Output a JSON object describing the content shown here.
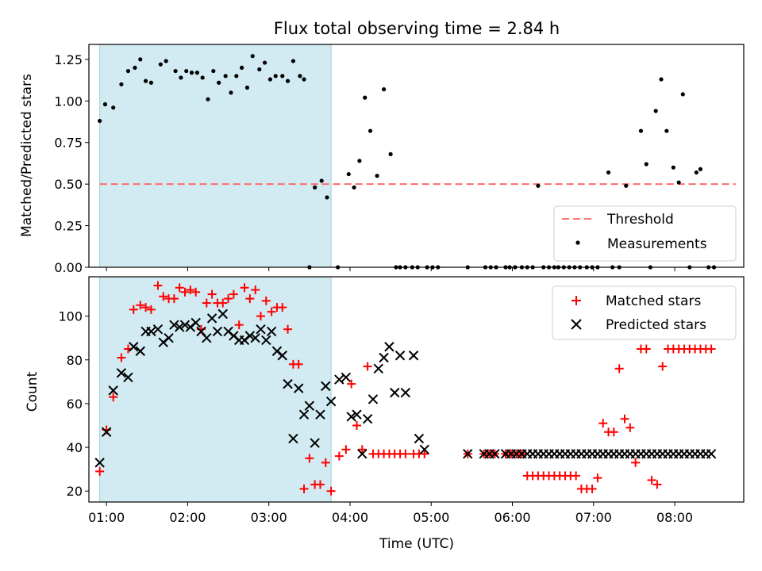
{
  "chart_data": [
    {
      "type": "scatter",
      "title": "Flux total observing time = 2.84 h",
      "xlabel": "",
      "ylabel": "Matched/Predicted stars",
      "xlim": [
        "00:47",
        "08:51"
      ],
      "ylim": [
        0,
        1.34
      ],
      "xticks": [
        "01:00",
        "02:00",
        "03:00",
        "04:00",
        "05:00",
        "06:00",
        "07:00",
        "08:00"
      ],
      "yticks": [
        "0.00",
        "0.25",
        "0.50",
        "0.75",
        "1.00",
        "1.25"
      ],
      "shaded_span": [
        "00:55",
        "03:46"
      ],
      "threshold": 0.5,
      "legend": [
        "Threshold",
        "Measurements"
      ],
      "legend_position": "lower right",
      "colors": {
        "threshold": "#ff6b6b",
        "measurements": "#000000",
        "span": "#add8e6"
      },
      "series": [
        {
          "name": "Threshold",
          "style": "dashed-line",
          "x": [
            "00:55",
            "08:45"
          ],
          "values": [
            0.5,
            0.5
          ]
        },
        {
          "name": "Measurements",
          "style": "dot",
          "x": [
            "00:55",
            "00:59",
            "01:05",
            "01:11",
            "01:16",
            "01:21",
            "01:25",
            "01:29",
            "01:33",
            "01:40",
            "01:44",
            "01:51",
            "01:55",
            "01:59",
            "02:03",
            "02:07",
            "02:11",
            "02:15",
            "02:19",
            "02:23",
            "02:28",
            "02:32",
            "02:36",
            "02:40",
            "02:44",
            "02:48",
            "02:53",
            "02:57",
            "03:01",
            "03:05",
            "03:10",
            "03:14",
            "03:18",
            "03:23",
            "03:26",
            "03:30",
            "03:34",
            "03:39",
            "03:43",
            "03:51",
            "03:59",
            "04:03",
            "04:07",
            "04:11",
            "04:15",
            "04:20",
            "04:25",
            "04:30",
            "04:34",
            "04:37",
            "04:41",
            "04:46",
            "04:50",
            "04:57",
            "05:01",
            "05:05",
            "05:27",
            "05:40",
            "05:44",
            "05:48",
            "05:55",
            "05:58",
            "06:02",
            "06:07",
            "06:11",
            "06:15",
            "06:19",
            "06:23",
            "06:27",
            "06:31",
            "06:34",
            "06:38",
            "06:42",
            "06:46",
            "06:50",
            "06:55",
            "06:59",
            "07:03",
            "07:11",
            "07:14",
            "07:19",
            "07:24",
            "07:35",
            "07:39",
            "07:42",
            "07:46",
            "07:50",
            "07:54",
            "07:59",
            "08:03",
            "08:06",
            "08:11",
            "08:16",
            "08:19",
            "08:25",
            "08:29"
          ],
          "values": [
            0.88,
            0.98,
            0.96,
            1.1,
            1.18,
            1.2,
            1.25,
            1.12,
            1.11,
            1.22,
            1.24,
            1.18,
            1.14,
            1.18,
            1.17,
            1.17,
            1.14,
            1.01,
            1.18,
            1.11,
            1.15,
            1.05,
            1.15,
            1.2,
            1.08,
            1.27,
            1.19,
            1.23,
            1.13,
            1.15,
            1.15,
            1.12,
            1.24,
            1.15,
            1.13,
            0.0,
            0.48,
            0.52,
            0.42,
            0.0,
            0.56,
            0.48,
            0.64,
            1.02,
            0.82,
            0.55,
            1.07,
            0.68,
            0.0,
            0.0,
            0.0,
            0.0,
            0.0,
            0.0,
            0.0,
            0.0,
            0.0,
            0.0,
            0.0,
            0.0,
            0.0,
            0.0,
            0.0,
            0.0,
            0.0,
            0.0,
            0.49,
            0.0,
            0.0,
            0.0,
            0.0,
            0.0,
            0.0,
            0.0,
            0.0,
            0.0,
            0.0,
            0.0,
            0.57,
            0.0,
            0.0,
            0.49,
            0.82,
            0.62,
            0.0,
            0.94,
            1.13,
            0.82,
            0.6,
            0.51,
            1.04,
            0.0,
            0.57,
            0.59,
            0.0,
            0.0
          ]
        }
      ]
    },
    {
      "type": "scatter",
      "title": "",
      "xlabel": "Time (UTC)",
      "ylabel": "Count",
      "xlim": [
        "00:47",
        "08:51"
      ],
      "ylim": [
        15,
        118
      ],
      "xticks": [
        "01:00",
        "02:00",
        "03:00",
        "04:00",
        "05:00",
        "06:00",
        "07:00",
        "08:00"
      ],
      "yticks": [
        "20",
        "40",
        "60",
        "80",
        "100"
      ],
      "shaded_span": [
        "00:55",
        "03:46"
      ],
      "legend": [
        "Matched stars",
        "Predicted stars"
      ],
      "legend_position": "upper right",
      "colors": {
        "matched": "#ff0000",
        "predicted": "#000000",
        "span": "#add8e6"
      },
      "series": [
        {
          "name": "Matched stars",
          "marker": "+",
          "x": [
            "00:55",
            "01:00",
            "01:05",
            "01:11",
            "01:16",
            "01:20",
            "01:25",
            "01:29",
            "01:33",
            "01:38",
            "01:42",
            "01:46",
            "01:50",
            "01:54",
            "01:58",
            "02:02",
            "02:06",
            "02:10",
            "02:14",
            "02:18",
            "02:22",
            "02:26",
            "02:30",
            "02:34",
            "02:38",
            "02:42",
            "02:46",
            "02:50",
            "02:54",
            "02:58",
            "03:02",
            "03:06",
            "03:10",
            "03:14",
            "03:18",
            "03:22",
            "03:26",
            "03:30",
            "03:34",
            "03:38",
            "03:42",
            "03:46",
            "03:52",
            "03:57",
            "04:01",
            "04:05",
            "04:09",
            "04:13",
            "04:17",
            "04:21",
            "04:25",
            "04:29",
            "04:33",
            "04:37",
            "04:41",
            "04:47",
            "04:51",
            "04:55",
            "05:27",
            "05:39",
            "05:43",
            "05:47",
            "05:55",
            "05:59",
            "06:03",
            "06:07",
            "06:11",
            "06:15",
            "06:19",
            "06:23",
            "06:27",
            "06:31",
            "06:35",
            "06:39",
            "06:43",
            "06:47",
            "06:51",
            "06:55",
            "06:59",
            "07:03",
            "07:07",
            "07:11",
            "07:15",
            "07:19",
            "07:23",
            "07:27",
            "07:31",
            "07:35",
            "07:39",
            "07:43",
            "07:47",
            "07:51",
            "07:55",
            "07:59",
            "08:03",
            "08:07",
            "08:11",
            "08:15",
            "08:19",
            "08:23",
            "08:27"
          ],
          "values": [
            29,
            48,
            63,
            81,
            85,
            103,
            105,
            104,
            103,
            114,
            109,
            108,
            108,
            113,
            111,
            112,
            111,
            94,
            106,
            110,
            106,
            106,
            108,
            110,
            96,
            113,
            108,
            112,
            100,
            107,
            102,
            104,
            104,
            94,
            78,
            78,
            21,
            35,
            23,
            23,
            33,
            20,
            36,
            39,
            69,
            50,
            39,
            77,
            37,
            37,
            37,
            37,
            37,
            37,
            37,
            37,
            37,
            37,
            37,
            37,
            37,
            37,
            37,
            37,
            37,
            37,
            27,
            27,
            27,
            27,
            27,
            27,
            27,
            27,
            27,
            27,
            21,
            21,
            21,
            26,
            51,
            47,
            47,
            76,
            53,
            49,
            33,
            85,
            85,
            25,
            23,
            77,
            85,
            85,
            85,
            85,
            85,
            85,
            85,
            85,
            85
          ]
        },
        {
          "name": "Predicted stars",
          "marker": "x",
          "x": [
            "00:55",
            "01:00",
            "01:05",
            "01:11",
            "01:16",
            "01:20",
            "01:25",
            "01:29",
            "01:33",
            "01:38",
            "01:42",
            "01:46",
            "01:50",
            "01:54",
            "01:58",
            "02:02",
            "02:06",
            "02:10",
            "02:14",
            "02:18",
            "02:22",
            "02:26",
            "02:30",
            "02:34",
            "02:38",
            "02:42",
            "02:46",
            "02:50",
            "02:54",
            "02:58",
            "03:02",
            "03:06",
            "03:10",
            "03:14",
            "03:18",
            "03:22",
            "03:26",
            "03:30",
            "03:34",
            "03:38",
            "03:42",
            "03:46",
            "03:52",
            "03:57",
            "04:01",
            "04:05",
            "04:09",
            "04:13",
            "04:17",
            "04:21",
            "04:25",
            "04:29",
            "04:33",
            "04:37",
            "04:41",
            "04:47",
            "04:51",
            "04:55",
            "05:27",
            "05:39",
            "05:43",
            "05:47",
            "05:55",
            "05:59",
            "06:03",
            "06:07",
            "06:11",
            "06:15",
            "06:19",
            "06:23",
            "06:27",
            "06:31",
            "06:35",
            "06:39",
            "06:43",
            "06:47",
            "06:51",
            "06:55",
            "06:59",
            "07:03",
            "07:07",
            "07:11",
            "07:15",
            "07:19",
            "07:23",
            "07:27",
            "07:31",
            "07:35",
            "07:39",
            "07:43",
            "07:47",
            "07:51",
            "07:55",
            "07:59",
            "08:03",
            "08:07",
            "08:11",
            "08:15",
            "08:19",
            "08:23",
            "08:27"
          ],
          "values": [
            33,
            47,
            66,
            74,
            72,
            86,
            84,
            93,
            93,
            94,
            88,
            90,
            96,
            95,
            96,
            95,
            97,
            93,
            90,
            99,
            93,
            101,
            93,
            91,
            89,
            89,
            91,
            90,
            94,
            89,
            93,
            84,
            82,
            69,
            44,
            67,
            55,
            59,
            42,
            55,
            68,
            61,
            71,
            72,
            54,
            55,
            37,
            53,
            62,
            76,
            81,
            86,
            65,
            82,
            65,
            82,
            44,
            39,
            37,
            37,
            37,
            37,
            37,
            37,
            37,
            37,
            37,
            37,
            37,
            37,
            37,
            37,
            37,
            37,
            37,
            37,
            37,
            37,
            37,
            37,
            37,
            37,
            37,
            37,
            37,
            37,
            37,
            37,
            37,
            37,
            37,
            37,
            37,
            37,
            37,
            37,
            37,
            37,
            37,
            37,
            37
          ]
        }
      ]
    }
  ]
}
